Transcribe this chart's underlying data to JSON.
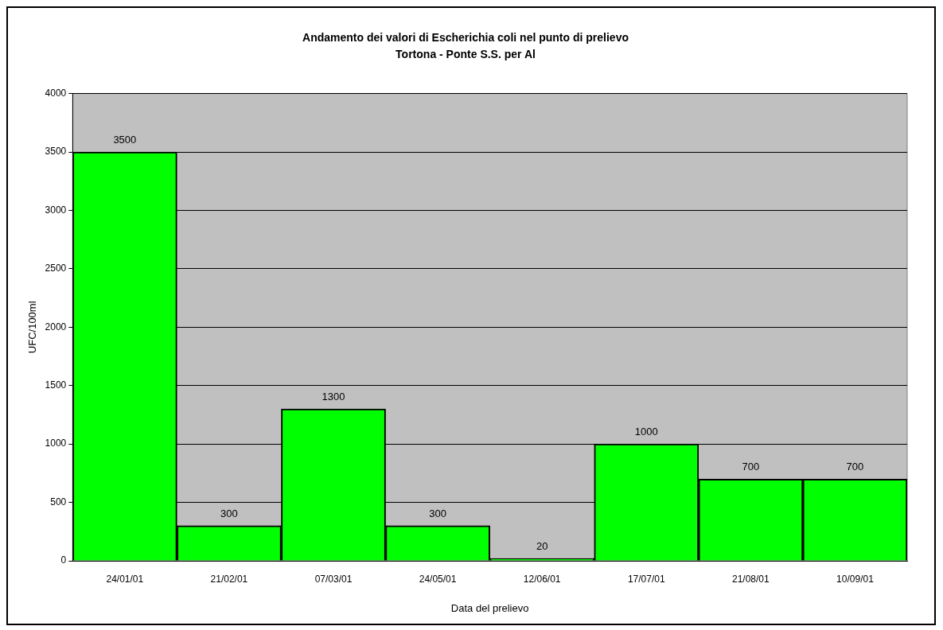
{
  "chart_data": {
    "type": "bar",
    "title": "Andamento dei valori di Escherichia coli nel punto di prelievo",
    "subtitle": "Tortona - Ponte S.S. per Al",
    "xlabel": "Data del prelievo",
    "ylabel": "UFC/100ml",
    "categories": [
      "24/01/01",
      "21/02/01",
      "07/03/01",
      "24/05/01",
      "12/06/01",
      "17/07/01",
      "21/08/01",
      "10/09/01"
    ],
    "values": [
      3500,
      300,
      1300,
      300,
      20,
      1000,
      700,
      700
    ],
    "color": "#00ff00",
    "ylim": [
      0,
      4000
    ],
    "yticks": [
      0,
      500,
      1000,
      1500,
      2000,
      2500,
      3000,
      3500,
      4000
    ],
    "grid": "y",
    "data_labels": true,
    "legend": false
  }
}
